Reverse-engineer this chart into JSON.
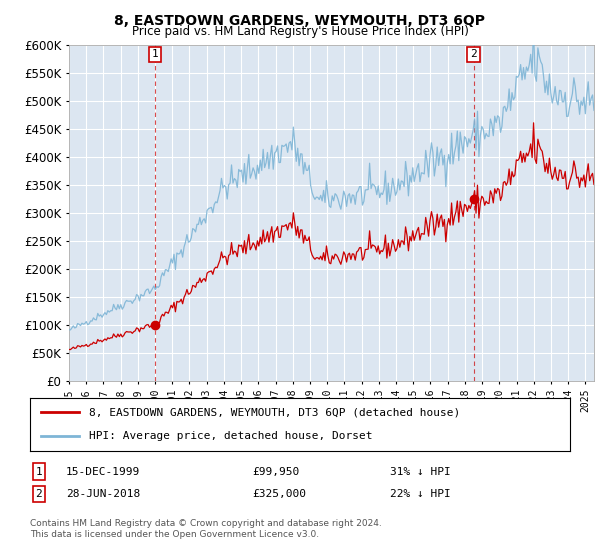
{
  "title": "8, EASTDOWN GARDENS, WEYMOUTH, DT3 6QP",
  "subtitle": "Price paid vs. HM Land Registry's House Price Index (HPI)",
  "plot_bg_color": "#dce6f1",
  "grid_color": "#ffffff",
  "ylim": [
    0,
    600000
  ],
  "yticks": [
    0,
    50000,
    100000,
    150000,
    200000,
    250000,
    300000,
    350000,
    400000,
    450000,
    500000,
    550000,
    600000
  ],
  "sale1": {
    "date_label": "15-DEC-1999",
    "price": 99950,
    "x_year": 2000.0,
    "label": "1",
    "pct": "31% ↓ HPI"
  },
  "sale2": {
    "date_label": "28-JUN-2018",
    "price": 325000,
    "x_year": 2018.5,
    "label": "2",
    "pct": "22% ↓ HPI"
  },
  "hpi_color": "#7eb5d6",
  "price_color": "#cc0000",
  "dashed_line_color": "#cc0000",
  "legend_label_red": "8, EASTDOWN GARDENS, WEYMOUTH, DT3 6QP (detached house)",
  "legend_label_blue": "HPI: Average price, detached house, Dorset",
  "footnote": "Contains HM Land Registry data © Crown copyright and database right 2024.\nThis data is licensed under the Open Government Licence v3.0.",
  "xmin": 1995.0,
  "xmax": 2025.5
}
